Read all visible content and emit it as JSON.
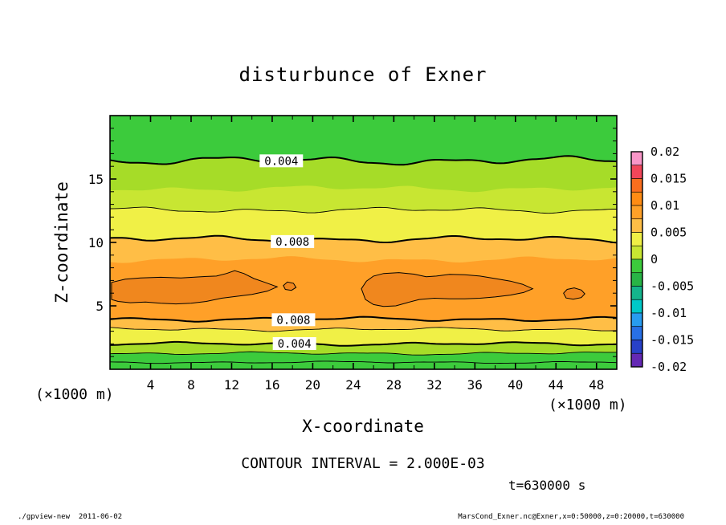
{
  "title": "disturbunce of Exner",
  "axes": {
    "x_label": "X-coordinate",
    "y_label": "Z-coordinate",
    "unit_left": "(×1000 m)",
    "unit_right": "(×1000 m)"
  },
  "captions": {
    "contour_interval": "CONTOUR INTERVAL = 2.000E-03",
    "time": "t=630000 s"
  },
  "footer": {
    "left": "./gpview-new  2011-06-02",
    "right": "MarsCond_Exner.nc@Exner,x=0:50000,z=0:20000,t=630000"
  },
  "chart_data": {
    "type": "heatmap",
    "subtype": "filled-contour",
    "title": "disturbunce of Exner",
    "xlabel": "X-coordinate (×1000 m)",
    "ylabel": "Z-coordinate (×1000 m)",
    "x_range": [
      0,
      50
    ],
    "z_range": [
      0,
      20
    ],
    "x_ticks": [
      4,
      8,
      12,
      16,
      20,
      24,
      28,
      32,
      36,
      40,
      44,
      48
    ],
    "y_ticks": [
      5,
      10,
      15
    ],
    "grid": false,
    "contour_interval": 0.002,
    "labeled_contour_values": [
      0.004,
      0.008
    ],
    "time_label_s": 630000,
    "base_color": "#3CCB3C",
    "blob_color": "#F0871E",
    "bands": [
      {
        "z": 16.45,
        "amp": 0.38,
        "seed": 1,
        "line": "thick",
        "label": "0.004",
        "label_x": 16.9,
        "fill_below": "#A6DC28"
      },
      {
        "z": 14.25,
        "amp": 0.3,
        "seed": 2,
        "line": "none",
        "fill_below": "#C8E632"
      },
      {
        "z": 12.55,
        "amp": 0.26,
        "seed": 3,
        "line": "thin",
        "fill_below": "#F0F046"
      },
      {
        "z": 10.25,
        "amp": 0.3,
        "seed": 4,
        "line": "thick",
        "label": "0.008",
        "label_x": 18.0,
        "fill_below": "#FFBE46"
      },
      {
        "z": 8.65,
        "amp": 0.28,
        "seed": 5,
        "line": "none",
        "fill_below": "#FFA028"
      },
      {
        "z": 3.95,
        "amp": 0.2,
        "seed": 6,
        "line": "thick",
        "label": "0.008",
        "label_x": 18.1,
        "fill_below": "#FFBE46"
      },
      {
        "z": 3.15,
        "amp": 0.17,
        "seed": 7,
        "line": "thin",
        "fill_below": "#F0F046"
      },
      {
        "z": 2.0,
        "amp": 0.16,
        "seed": 8,
        "line": "thick",
        "label": "0.004",
        "label_x": 18.2,
        "fill_below": "#A6DC28"
      },
      {
        "z": 1.25,
        "amp": 0.14,
        "seed": 9,
        "line": "thin",
        "fill_below": "#3CCB3C"
      },
      {
        "z": 0.55,
        "amp": 0.1,
        "seed": 10,
        "line": "thin",
        "fill_below": null
      }
    ],
    "blobs": [
      {
        "points": [
          [
            0.15,
            6.85
          ],
          [
            1.5,
            7.1
          ],
          [
            3,
            7.2
          ],
          [
            5,
            7.25
          ],
          [
            7,
            7.2
          ],
          [
            9,
            7.3
          ],
          [
            10.5,
            7.35
          ],
          [
            11.5,
            7.55
          ],
          [
            12.3,
            7.78
          ],
          [
            13.2,
            7.55
          ],
          [
            14.2,
            7.15
          ],
          [
            15.3,
            6.85
          ],
          [
            16.5,
            6.5
          ],
          [
            15.5,
            6.15
          ],
          [
            14,
            5.9
          ],
          [
            12.5,
            5.75
          ],
          [
            11,
            5.6
          ],
          [
            9.5,
            5.35
          ],
          [
            8,
            5.2
          ],
          [
            6.5,
            5.15
          ],
          [
            5,
            5.2
          ],
          [
            3.5,
            5.3
          ],
          [
            2,
            5.25
          ],
          [
            0.8,
            5.35
          ],
          [
            0.15,
            5.5
          ]
        ]
      },
      {
        "points": [
          [
            17.1,
            6.6
          ],
          [
            17.5,
            6.88
          ],
          [
            18.1,
            6.78
          ],
          [
            18.35,
            6.45
          ],
          [
            17.9,
            6.22
          ],
          [
            17.3,
            6.3
          ]
        ]
      },
      {
        "points": [
          [
            24.8,
            6.35
          ],
          [
            25.3,
            6.95
          ],
          [
            26,
            7.35
          ],
          [
            27,
            7.55
          ],
          [
            28.5,
            7.62
          ],
          [
            30,
            7.5
          ],
          [
            31.2,
            7.3
          ],
          [
            32.2,
            7.35
          ],
          [
            33.5,
            7.48
          ],
          [
            35,
            7.45
          ],
          [
            36.5,
            7.35
          ],
          [
            38,
            7.15
          ],
          [
            39.5,
            6.95
          ],
          [
            40.7,
            6.7
          ],
          [
            41.7,
            6.35
          ],
          [
            40.8,
            6.05
          ],
          [
            39.5,
            5.85
          ],
          [
            38,
            5.7
          ],
          [
            36.5,
            5.6
          ],
          [
            35,
            5.55
          ],
          [
            33.5,
            5.55
          ],
          [
            32,
            5.6
          ],
          [
            30.5,
            5.5
          ],
          [
            29.3,
            5.25
          ],
          [
            28.2,
            5.0
          ],
          [
            27,
            4.95
          ],
          [
            26,
            5.1
          ],
          [
            25.2,
            5.5
          ]
        ]
      },
      {
        "points": [
          [
            44.75,
            6.0
          ],
          [
            45.1,
            6.3
          ],
          [
            45.8,
            6.42
          ],
          [
            46.5,
            6.25
          ],
          [
            46.85,
            5.95
          ],
          [
            46.5,
            5.65
          ],
          [
            45.7,
            5.52
          ],
          [
            45.0,
            5.62
          ]
        ]
      }
    ],
    "approx_vertical_profile": {
      "z": [
        0,
        1.25,
        2.0,
        3.15,
        3.95,
        6.0,
        8.65,
        10.25,
        12.55,
        14.25,
        16.45,
        20
      ],
      "value": [
        0.002,
        0.002,
        0.004,
        0.006,
        0.008,
        0.01,
        0.0085,
        0.008,
        0.006,
        0.005,
        0.004,
        0.002
      ]
    },
    "colorbar": {
      "min": -0.02,
      "max": 0.02,
      "labels": [
        "0.02",
        "0.015",
        "0.01",
        "0.005",
        "0",
        "-0.005",
        "-0.01",
        "-0.015",
        "-0.02"
      ],
      "colors": [
        "#F996C8",
        "#F2465A",
        "#FA6E1E",
        "#FF8C14",
        "#FFA028",
        "#FFBE46",
        "#F0F046",
        "#C8E632",
        "#3CCB3C",
        "#28B446",
        "#14B48C",
        "#00C8C8",
        "#289CF0",
        "#2870E6",
        "#2841C8",
        "#6428B4"
      ]
    }
  }
}
